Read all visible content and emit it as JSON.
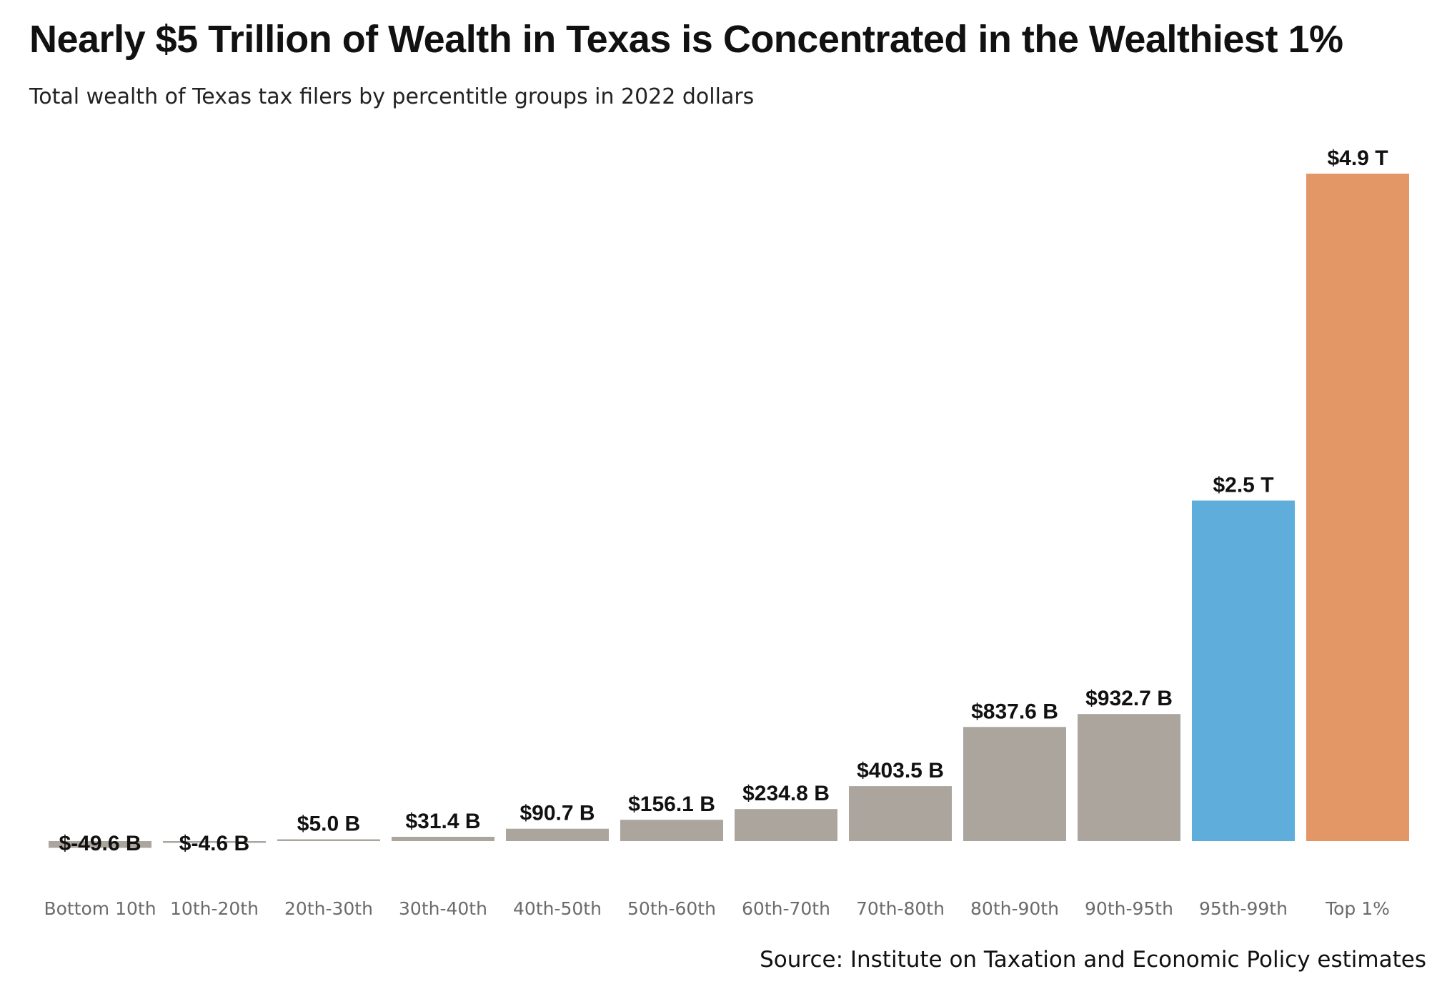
{
  "chart_data": {
    "type": "bar",
    "title": "Nearly $5 Trillion of Wealth in Texas is Concentrated in the Wealthiest 1%",
    "subtitle": "Total wealth of Texas tax filers by percentitle groups in 2022 dollars",
    "source": "Source: Institute on Taxation and Economic Policy estimates",
    "categories": [
      "Bottom 10th",
      "10th-20th",
      "20th-30th",
      "30th-40th",
      "40th-50th",
      "50th-60th",
      "60th-70th",
      "70th-80th",
      "80th-90th",
      "90th-95th",
      "95th-99th",
      "Top 1%"
    ],
    "values": [
      -49.6,
      -4.6,
      5.0,
      31.4,
      90.7,
      156.1,
      234.8,
      403.5,
      837.6,
      932.7,
      2500,
      4900
    ],
    "value_unit": "billions of 2022 dollars",
    "data_labels": [
      "$-49.6 B",
      "$-4.6 B",
      "$5.0 B",
      "$31.4 B",
      "$90.7 B",
      "$156.1 B",
      "$234.8 B",
      "$403.5 B",
      "$837.6 B",
      "$932.7 B",
      "$2.5 T",
      "$4.9 T"
    ],
    "colors": [
      "#aba59e",
      "#aba59e",
      "#aba59e",
      "#aba59e",
      "#aba59e",
      "#aba59e",
      "#aba59e",
      "#aba59e",
      "#aba59e",
      "#aba59e",
      "#5eadda",
      "#e49766"
    ],
    "ylim": [
      -100,
      4900
    ],
    "grid": false,
    "legend": "none"
  }
}
